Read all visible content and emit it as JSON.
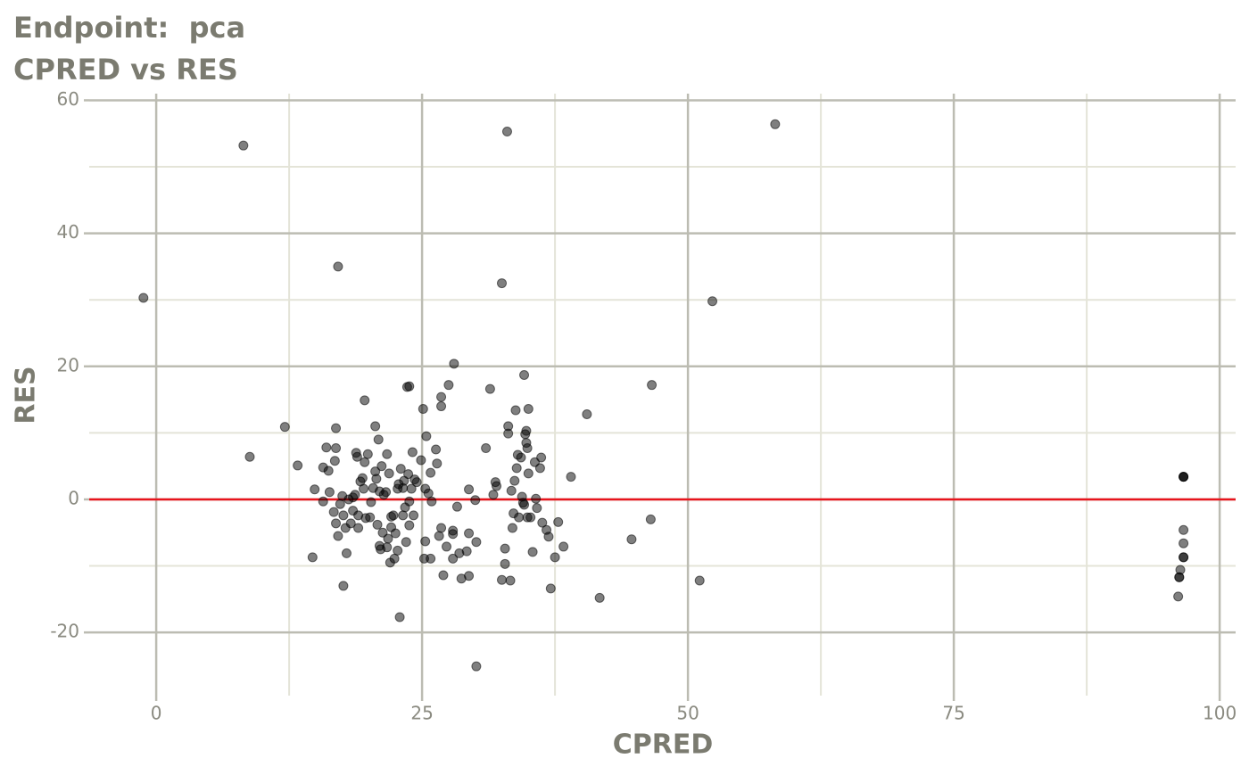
{
  "chart_data": {
    "type": "scatter",
    "title": "Endpoint:  pca",
    "subtitle": "CPRED vs RES",
    "x_label": "CPRED",
    "y_label": "RES",
    "color": "#000000",
    "reference_line": {
      "y": 0,
      "color": "#e8141c"
    },
    "grid": true,
    "xlim": [
      -6.3,
      101.5
    ],
    "ylim": [
      -29.5,
      61
    ],
    "xticks": [
      0,
      25,
      50,
      75,
      100
    ],
    "yticks": [
      -20,
      0,
      20,
      40,
      60
    ],
    "x_minor_ticks": [
      12.5,
      37.5,
      62.5,
      87.5
    ],
    "y_minor_ticks": [
      -10,
      10,
      30,
      50
    ],
    "x": [
      -1.2,
      8.2,
      8.8,
      12.1,
      13.3,
      14.7,
      14.9,
      15.7,
      15.7,
      16.0,
      16.2,
      16.3,
      16.7,
      16.8,
      16.9,
      16.9,
      17.1,
      16.9,
      17.1,
      17.3,
      17.5,
      17.6,
      17.6,
      17.8,
      17.9,
      18.1,
      18.3,
      18.5,
      18.5,
      18.7,
      18.8,
      18.9,
      19.0,
      19.0,
      19.2,
      19.4,
      19.5,
      19.6,
      19.6,
      19.7,
      19.9,
      20.1,
      20.2,
      20.4,
      20.6,
      20.6,
      20.7,
      20.8,
      20.9,
      21.0,
      21.0,
      21.1,
      21.2,
      21.3,
      21.4,
      21.6,
      21.7,
      21.7,
      21.8,
      21.9,
      22.0,
      22.1,
      22.1,
      22.3,
      22.4,
      22.5,
      22.7,
      22.7,
      22.8,
      22.9,
      23.0,
      23.2,
      23.2,
      23.3,
      23.4,
      23.5,
      23.6,
      23.7,
      23.8,
      23.8,
      23.8,
      24.0,
      24.1,
      24.2,
      24.3,
      24.5,
      24.9,
      25.1,
      25.2,
      25.3,
      25.3,
      25.4,
      25.6,
      25.8,
      25.8,
      25.9,
      26.3,
      26.4,
      26.6,
      26.8,
      26.8,
      26.8,
      27.0,
      27.3,
      27.5,
      27.9,
      27.9,
      27.9,
      28.0,
      28.3,
      28.5,
      28.7,
      29.2,
      29.4,
      29.4,
      29.4,
      30.0,
      30.1,
      30.1,
      31.0,
      31.4,
      31.7,
      31.9,
      32.0,
      32.5,
      32.5,
      32.8,
      32.8,
      33.0,
      33.1,
      33.1,
      33.3,
      33.4,
      33.5,
      33.6,
      33.7,
      33.8,
      33.9,
      34.0,
      34.1,
      34.3,
      34.4,
      34.5,
      34.6,
      34.6,
      34.7,
      34.8,
      34.8,
      34.9,
      34.9,
      35.0,
      35.0,
      35.2,
      35.4,
      35.6,
      35.7,
      35.8,
      36.1,
      36.2,
      36.3,
      36.7,
      36.9,
      37.1,
      37.5,
      37.8,
      38.3,
      39.0,
      40.5,
      41.7,
      44.7,
      46.5,
      46.6,
      51.1,
      52.3,
      58.2,
      96.6,
      96.6,
      96.6,
      96.6,
      96.6,
      96.6,
      96.6,
      96.3,
      96.2,
      96.2,
      96.1
    ],
    "y": [
      30.3,
      53.2,
      6.4,
      10.9,
      5.1,
      -8.7,
      1.5,
      4.8,
      -0.3,
      7.8,
      4.3,
      1.1,
      -1.9,
      5.8,
      7.7,
      10.7,
      35.0,
      -3.6,
      -5.5,
      -0.7,
      0.5,
      -2.4,
      -13.0,
      -4.3,
      -8.1,
      0,
      -3.6,
      0.3,
      -1.7,
      0.7,
      7.0,
      6.4,
      -4.3,
      -2.4,
      2.7,
      3.2,
      1.6,
      5.6,
      14.9,
      -2.8,
      6.8,
      -2.7,
      -0.4,
      1.7,
      11.0,
      4.2,
      3.1,
      -3.8,
      9.0,
      1.2,
      -7.0,
      -7.5,
      5.0,
      -5.0,
      0.7,
      1.1,
      6.8,
      -7.2,
      -5.9,
      3.9,
      -9.5,
      -4.2,
      -2.6,
      -2.4,
      -8.9,
      -5.1,
      -7.7,
      1.6,
      2.3,
      -17.7,
      4.6,
      1.7,
      -2.4,
      2.8,
      -1.2,
      -6.4,
      16.9,
      3.8,
      -0.3,
      17.0,
      -3.9,
      1.6,
      7.1,
      -2.4,
      3.0,
      2.6,
      5.9,
      13.6,
      -8.9,
      -6.3,
      1.6,
      9.5,
      0.9,
      4.0,
      -8.9,
      -0.3,
      7.5,
      5.4,
      -5.5,
      14.0,
      15.4,
      -4.3,
      -11.4,
      -7.1,
      17.2,
      -8.9,
      -4.7,
      -5.2,
      20.4,
      -1.1,
      -8.1,
      -11.9,
      -7.8,
      1.5,
      -5.1,
      -11.5,
      -0.1,
      -6.4,
      -25.1,
      7.7,
      16.6,
      0.7,
      2.6,
      2.0,
      -12.1,
      32.5,
      -7.4,
      -9.7,
      55.3,
      11.0,
      9.9,
      -12.2,
      1.3,
      -4.3,
      -2.1,
      2.8,
      13.4,
      4.7,
      6.7,
      -2.7,
      6.3,
      0.4,
      -0.5,
      -0.8,
      18.7,
      9.8,
      8.5,
      10.3,
      7.7,
      -2.7,
      13.6,
      3.9,
      -2.7,
      -7.9,
      5.6,
      0.1,
      -1.3,
      4.7,
      6.3,
      -3.5,
      -4.6,
      -5.6,
      -13.4,
      -8.7,
      -3.4,
      -7.1,
      3.4,
      12.8,
      -14.8,
      -6.0,
      -3.0,
      17.2,
      -12.2,
      29.8,
      56.4,
      3.4,
      3.4,
      3.4,
      -4.6,
      -6.6,
      -8.7,
      -8.7,
      -10.6,
      -11.7,
      -11.7,
      -14.6
    ]
  }
}
